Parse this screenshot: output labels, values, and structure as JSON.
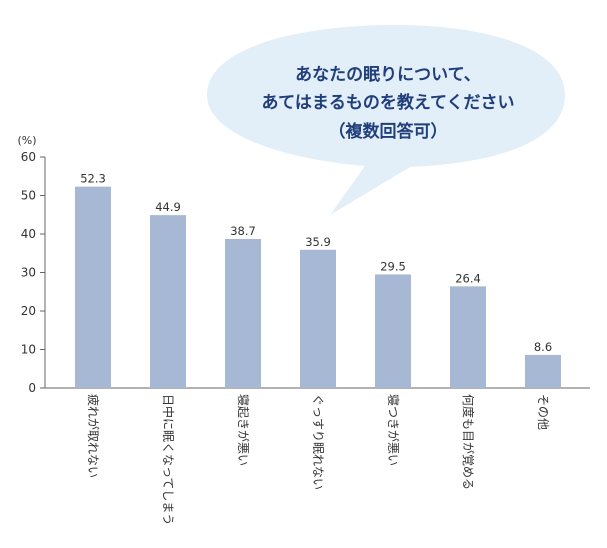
{
  "chart_data": {
    "type": "bar",
    "unit_label": "(%)",
    "categories": [
      "疲れが取れない",
      "日中に眠くなってしまう",
      "寝起きが悪い",
      "ぐっすり眠れない",
      "寝つきが悪い",
      "何度も目が覚める",
      "その他"
    ],
    "values": [
      52.3,
      44.9,
      38.7,
      35.9,
      29.5,
      26.4,
      8.6
    ],
    "value_labels": [
      "52.3",
      "44.9",
      "38.7",
      "35.9",
      "29.5",
      "26.4",
      "8.6"
    ],
    "ylim": [
      0,
      60
    ],
    "yticks": [
      0,
      10,
      20,
      30,
      40,
      50,
      60
    ],
    "ytick_labels": [
      "0",
      "10",
      "20",
      "30",
      "40",
      "50",
      "60"
    ],
    "bar_color": "#a7b8d4",
    "grid": false,
    "legend": "none",
    "question_bubble": {
      "lines": [
        "あなたの眠りについて、",
        "あてはまるものを教えてください",
        "（複数回答可）"
      ],
      "fill_color": "#e2eef8",
      "text_color": "#1f3e7a"
    }
  }
}
